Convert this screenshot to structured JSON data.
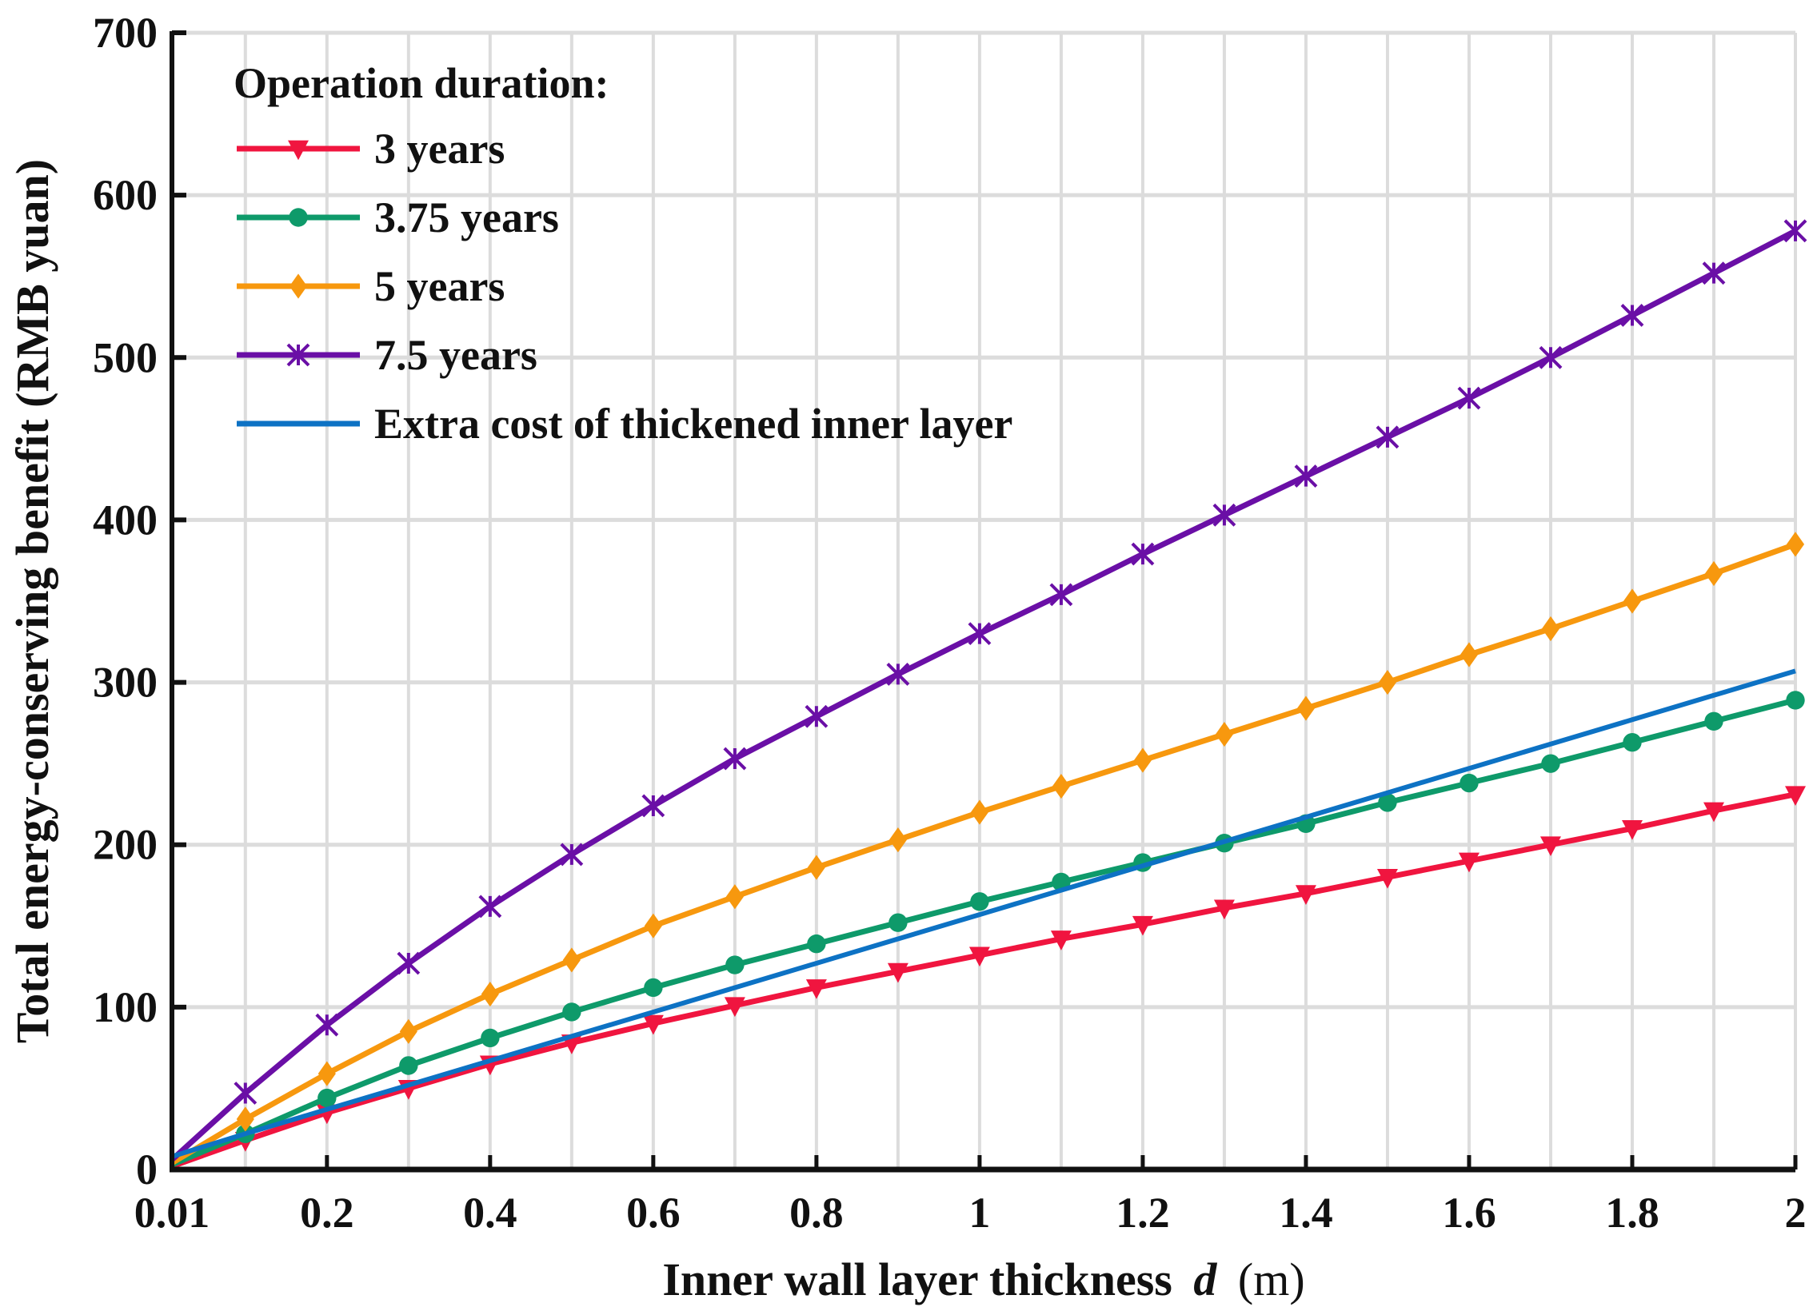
{
  "chart_data": {
    "type": "line",
    "xlabel": "Inner wall layer thickness",
    "xlabel_var": "d",
    "xlabel_unit": "(m)",
    "ylabel": "Total energy-conserving benefit (RMB yuan)",
    "xlim": [
      0.01,
      2
    ],
    "ylim": [
      0,
      700
    ],
    "xticks": [
      "0.01",
      "0.2",
      "0.4",
      "0.6",
      "0.8",
      "1",
      "1.2",
      "1.4",
      "1.6",
      "1.8",
      "2"
    ],
    "xtick_values": [
      0.01,
      0.2,
      0.4,
      0.6,
      0.8,
      1,
      1.2,
      1.4,
      1.6,
      1.8,
      2
    ],
    "yticks": [
      0,
      100,
      200,
      300,
      400,
      500,
      600,
      700
    ],
    "grid": true,
    "legend": {
      "title": "Operation duration:",
      "placement": "top-left"
    },
    "x": [
      0.01,
      0.1,
      0.2,
      0.3,
      0.4,
      0.5,
      0.6,
      0.7,
      0.8,
      0.9,
      1.0,
      1.1,
      1.2,
      1.3,
      1.4,
      1.5,
      1.6,
      1.7,
      1.8,
      1.9,
      2.0
    ],
    "series": [
      {
        "name": "3 years",
        "color": "#f0153f",
        "marker": "triangle-down",
        "values": [
          2,
          18,
          35,
          50,
          65,
          78,
          90,
          101,
          112,
          122,
          132,
          142,
          151,
          161,
          170,
          180,
          190,
          200,
          210,
          221,
          231
        ]
      },
      {
        "name": "3.75 years",
        "color": "#0e9a6a",
        "marker": "circle",
        "values": [
          3,
          22,
          44,
          64,
          81,
          97,
          112,
          126,
          139,
          152,
          165,
          177,
          189,
          201,
          213,
          226,
          238,
          250,
          263,
          276,
          289
        ]
      },
      {
        "name": "5 years",
        "color": "#f7980e",
        "marker": "diamond",
        "values": [
          4,
          31,
          59,
          85,
          108,
          129,
          150,
          168,
          186,
          203,
          220,
          236,
          252,
          268,
          284,
          300,
          317,
          333,
          350,
          367,
          385
        ]
      },
      {
        "name": "7.5 years",
        "color": "#6a0fa6",
        "marker": "x",
        "values": [
          6,
          47,
          89,
          127,
          162,
          194,
          224,
          253,
          279,
          305,
          330,
          354,
          379,
          403,
          427,
          451,
          475,
          500,
          526,
          552,
          578
        ]
      },
      {
        "name": "Extra cost of thickened inner layer",
        "color": "#0d72c4",
        "marker": "none",
        "values": [
          8,
          22,
          37,
          52,
          67,
          82,
          97,
          112,
          127,
          142,
          157,
          172,
          187,
          202,
          217,
          232,
          247,
          262,
          277,
          292,
          307
        ]
      }
    ]
  }
}
